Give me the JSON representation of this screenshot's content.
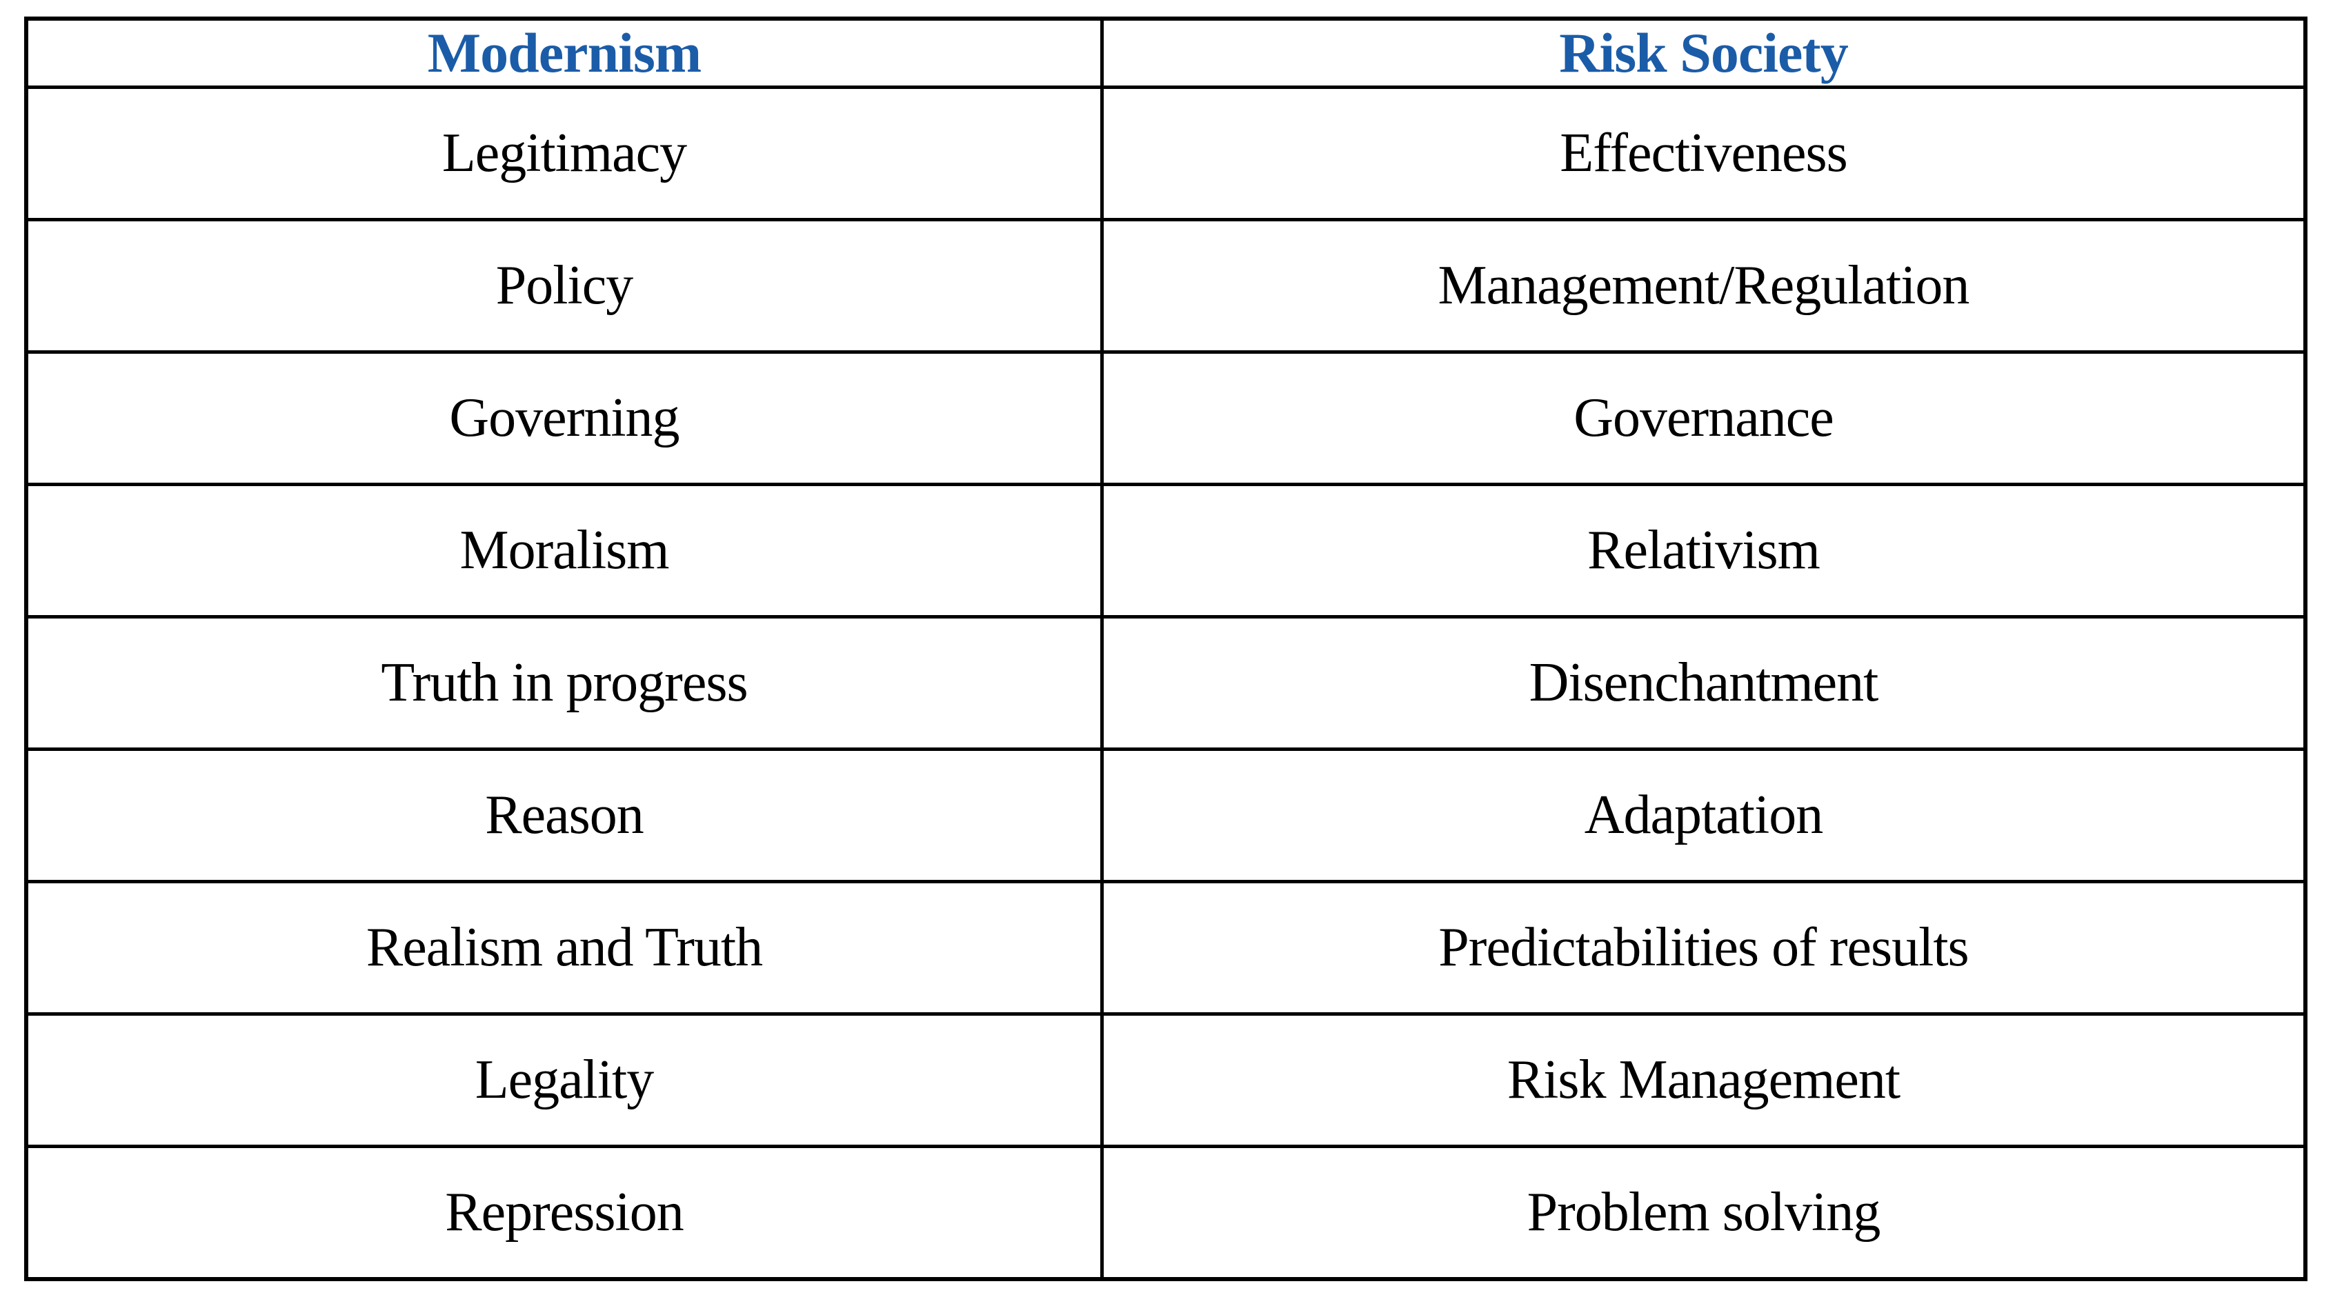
{
  "table": {
    "colors": {
      "header_text": "#1b5ca8",
      "border": "#000000",
      "body_text": "#000000"
    },
    "columns": [
      {
        "label": "Modernism"
      },
      {
        "label": "Risk Society"
      }
    ],
    "rows": [
      [
        "Legitimacy",
        "Effectiveness"
      ],
      [
        "Policy",
        "Management/Regulation"
      ],
      [
        "Governing",
        "Governance"
      ],
      [
        "Moralism",
        "Relativism"
      ],
      [
        "Truth in progress",
        "Disenchantment"
      ],
      [
        "Reason",
        "Adaptation"
      ],
      [
        "Realism and Truth",
        "Predictabilities of results"
      ],
      [
        "Legality",
        "Risk Management"
      ],
      [
        "Repression",
        "Problem solving"
      ]
    ]
  }
}
